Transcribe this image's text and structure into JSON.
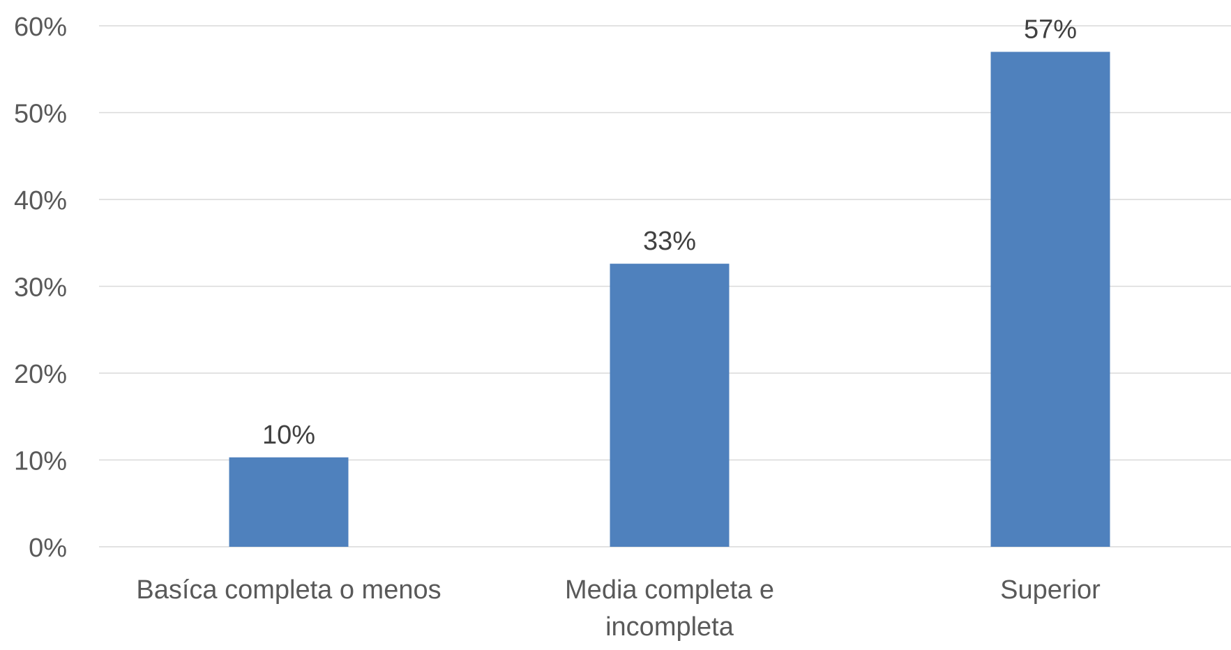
{
  "chart_data": {
    "type": "bar",
    "title": "",
    "xlabel": "",
    "ylabel": "",
    "categories": [
      [
        "Basíca completa o menos"
      ],
      [
        "Media completa e",
        "incompleta"
      ],
      [
        "Superior"
      ]
    ],
    "values": [
      10.3,
      32.6,
      57.0
    ],
    "data_labels": [
      "10%",
      "33%",
      "57%"
    ],
    "ylim": [
      0,
      60
    ],
    "y_ticks": [
      {
        "value": 0,
        "label": "0%"
      },
      {
        "value": 10,
        "label": "10%"
      },
      {
        "value": 20,
        "label": "20%"
      },
      {
        "value": 30,
        "label": "30%"
      },
      {
        "value": 40,
        "label": "40%"
      },
      {
        "value": 50,
        "label": "50%"
      },
      {
        "value": 60,
        "label": "60%"
      }
    ],
    "grid": true,
    "legend": "none",
    "colors": {
      "bar": "#4f81bd",
      "grid": "#d9d9d9",
      "tick_text": "#595959",
      "label_text": "#404040"
    }
  }
}
